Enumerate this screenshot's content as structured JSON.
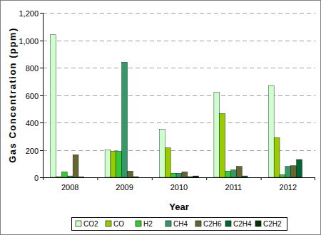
{
  "chart_data": {
    "type": "bar",
    "x_label": "Year",
    "y_label": "Gas Concentration (ppm)",
    "categories": [
      "2008",
      "2009",
      "2010",
      "2011",
      "2012"
    ],
    "series": [
      {
        "name": "CO2",
        "color": "#ccffcc",
        "values": [
          1040,
          200,
          350,
          620,
          670
        ]
      },
      {
        "name": "CO",
        "color": "#99cc00",
        "values": [
          5,
          190,
          215,
          465,
          290
        ]
      },
      {
        "name": "H2",
        "color": "#33cc33",
        "values": [
          40,
          190,
          30,
          45,
          20
        ]
      },
      {
        "name": "CH4",
        "color": "#339966",
        "values": [
          10,
          840,
          30,
          55,
          80
        ]
      },
      {
        "name": "C2H6",
        "color": "#666633",
        "values": [
          165,
          45,
          40,
          80,
          85
        ]
      },
      {
        "name": "C2H4",
        "color": "#006633",
        "values": [
          3,
          5,
          5,
          10,
          130
        ]
      },
      {
        "name": "C2H2",
        "color": "#003300",
        "values": [
          0,
          0,
          10,
          0,
          0
        ]
      }
    ],
    "ylim": [
      0,
      1200
    ],
    "yticks": [
      0,
      200,
      400,
      600,
      800,
      {
        "value": 1000,
        "label": "1,000"
      },
      {
        "value": 1200,
        "label": "1,200"
      }
    ],
    "grid": true,
    "legend": "bottom"
  }
}
